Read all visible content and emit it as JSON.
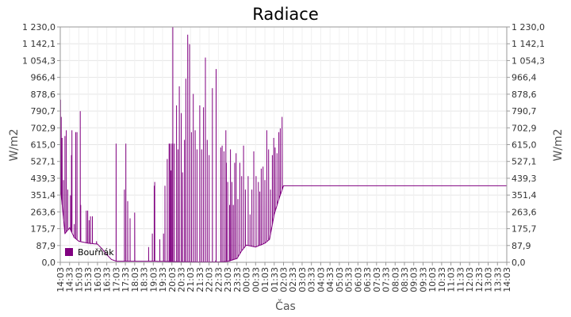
{
  "chart_data": {
    "type": "line",
    "title": "Radiace",
    "xlabel": "Čas",
    "ylabel": "W/m2",
    "ylim": [
      0,
      1230
    ],
    "yticks": [
      "0,0",
      "87,9",
      "175,7",
      "263,6",
      "351,4",
      "439,3",
      "527,1",
      "615,0",
      "702,9",
      "790,7",
      "878,6",
      "966,4",
      "1 054,3",
      "1 142,1",
      "1 230,0"
    ],
    "xticks": [
      "14:03",
      "14:33",
      "15:03",
      "15:33",
      "16:03",
      "16:33",
      "17:03",
      "17:33",
      "18:03",
      "18:33",
      "19:03",
      "19:33",
      "20:03",
      "20:33",
      "21:03",
      "21:33",
      "22:03",
      "22:33",
      "23:03",
      "23:33",
      "00:03",
      "00:33",
      "01:03",
      "01:33",
      "02:03",
      "02:33",
      "03:03",
      "03:33",
      "04:03",
      "04:33",
      "05:03",
      "05:33",
      "06:03",
      "06:33",
      "07:03",
      "07:33",
      "08:03",
      "08:33",
      "09:03",
      "09:33",
      "10:03",
      "10:33",
      "11:03",
      "11:33",
      "12:03",
      "12:33",
      "13:03",
      "13:33",
      "14:03"
    ],
    "grid": true,
    "legend_position": "bottom-left",
    "series": [
      {
        "name": "Bouřňák",
        "color": "#800080",
        "base": [
          [
            0,
            400
          ],
          [
            0.5,
            150
          ],
          [
            1,
            180
          ],
          [
            1.5,
            130
          ],
          [
            2,
            110
          ],
          [
            3,
            100
          ],
          [
            4,
            95
          ],
          [
            4.5,
            70
          ],
          [
            5,
            40
          ],
          [
            5.5,
            15
          ],
          [
            6,
            6
          ],
          [
            7,
            6
          ],
          [
            10,
            6
          ],
          [
            12,
            4
          ],
          [
            15,
            2
          ],
          [
            17,
            2
          ],
          [
            18,
            5
          ],
          [
            19,
            20
          ],
          [
            19.5,
            60
          ],
          [
            20,
            90
          ],
          [
            21,
            80
          ],
          [
            22,
            100
          ],
          [
            22.5,
            120
          ],
          [
            23,
            250
          ],
          [
            23.5,
            330
          ],
          [
            24,
            400
          ]
        ],
        "spikes": [
          [
            0.03,
            850
          ],
          [
            0.1,
            760
          ],
          [
            0.2,
            650
          ],
          [
            0.35,
            430
          ],
          [
            0.5,
            660
          ],
          [
            0.65,
            690
          ],
          [
            0.8,
            380
          ],
          [
            1.1,
            350
          ],
          [
            1.2,
            560
          ],
          [
            1.25,
            690
          ],
          [
            1.5,
            200
          ],
          [
            1.65,
            680
          ],
          [
            1.8,
            680
          ],
          [
            2.15,
            790
          ],
          [
            2.2,
            300
          ],
          [
            2.8,
            270
          ],
          [
            2.95,
            270
          ],
          [
            3.1,
            220
          ],
          [
            3.25,
            240
          ],
          [
            3.45,
            240
          ],
          [
            3.9,
            110
          ],
          [
            4.3,
            80
          ],
          [
            6.0,
            620
          ],
          [
            6.9,
            380
          ],
          [
            7.05,
            620
          ],
          [
            7.25,
            320
          ],
          [
            7.5,
            230
          ],
          [
            8.0,
            260
          ],
          [
            9.5,
            80
          ],
          [
            9.9,
            150
          ],
          [
            10.1,
            400
          ],
          [
            10.15,
            420
          ],
          [
            10.7,
            120
          ],
          [
            11.1,
            150
          ],
          [
            11.25,
            400
          ],
          [
            11.5,
            540
          ],
          [
            11.7,
            620
          ],
          [
            11.8,
            620
          ],
          [
            11.9,
            480
          ],
          [
            12.0,
            620
          ],
          [
            12.1,
            1230
          ],
          [
            12.25,
            620
          ],
          [
            12.5,
            820
          ],
          [
            12.65,
            590
          ],
          [
            12.8,
            920
          ],
          [
            13.0,
            780
          ],
          [
            13.15,
            470
          ],
          [
            13.35,
            640
          ],
          [
            13.5,
            960
          ],
          [
            13.7,
            1190
          ],
          [
            13.9,
            1140
          ],
          [
            14.1,
            680
          ],
          [
            14.3,
            880
          ],
          [
            14.5,
            690
          ],
          [
            14.7,
            590
          ],
          [
            15.0,
            820
          ],
          [
            15.2,
            590
          ],
          [
            15.4,
            810
          ],
          [
            15.6,
            1070
          ],
          [
            15.8,
            640
          ],
          [
            16.0,
            560
          ],
          [
            16.35,
            910
          ],
          [
            16.7,
            10
          ],
          [
            16.75,
            1010
          ],
          [
            17.25,
            600
          ],
          [
            17.4,
            610
          ],
          [
            17.6,
            580
          ],
          [
            17.8,
            690
          ],
          [
            17.85,
            520
          ],
          [
            18.0,
            420
          ],
          [
            18.2,
            300
          ],
          [
            18.3,
            590
          ],
          [
            18.45,
            420
          ],
          [
            18.6,
            300
          ],
          [
            18.75,
            520
          ],
          [
            18.9,
            570
          ],
          [
            19.1,
            330
          ],
          [
            19.3,
            520
          ],
          [
            19.5,
            450
          ],
          [
            19.7,
            610
          ],
          [
            19.9,
            380
          ],
          [
            20.2,
            450
          ],
          [
            20.4,
            250
          ],
          [
            20.6,
            380
          ],
          [
            20.8,
            580
          ],
          [
            21.05,
            450
          ],
          [
            21.3,
            420
          ],
          [
            21.45,
            370
          ],
          [
            21.6,
            490
          ],
          [
            21.8,
            500
          ],
          [
            22.0,
            430
          ],
          [
            22.2,
            690
          ],
          [
            22.4,
            590
          ],
          [
            22.6,
            380
          ],
          [
            22.8,
            560
          ],
          [
            22.95,
            650
          ],
          [
            23.1,
            600
          ],
          [
            23.3,
            570
          ],
          [
            23.5,
            680
          ],
          [
            23.65,
            700
          ],
          [
            23.85,
            760
          ]
        ]
      }
    ]
  }
}
